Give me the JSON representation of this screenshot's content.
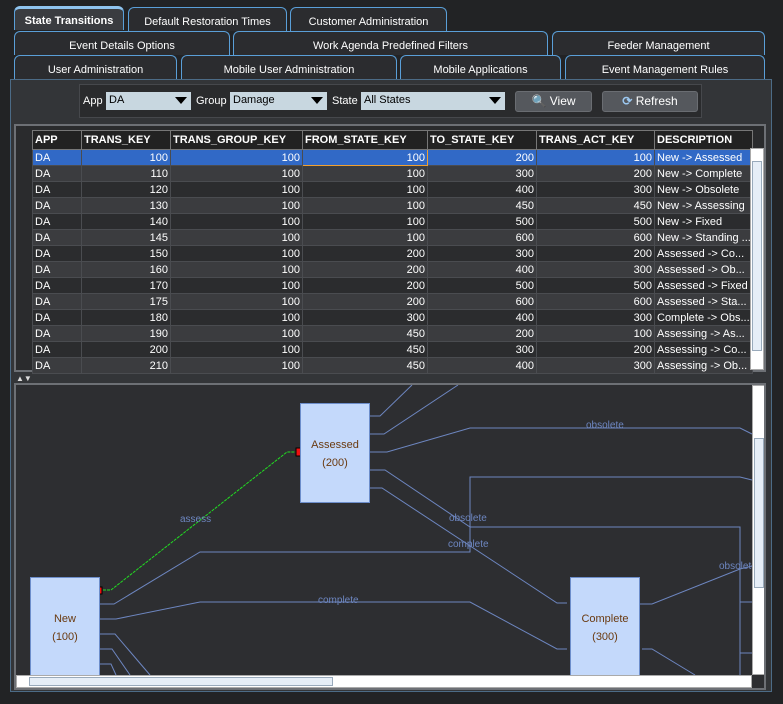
{
  "tabs": {
    "row1": [
      "State Transitions",
      "Default Restoration Times",
      "Customer Administration"
    ],
    "row2": [
      "Event Details Options",
      "Work Agenda Predefined Filters",
      "Feeder Management"
    ],
    "row3": [
      "User Administration",
      "Mobile User Administration",
      "Mobile Applications",
      "Event Management Rules"
    ],
    "selected": "State Transitions"
  },
  "filter": {
    "app_label": "App",
    "app_value": "DA",
    "group_label": "Group",
    "group_value": "Damage",
    "state_label": "State",
    "state_value": "All States",
    "view_label": "View",
    "refresh_label": "Refresh"
  },
  "table": {
    "columns": [
      "APP",
      "TRANS_KEY",
      "TRANS_GROUP_KEY",
      "FROM_STATE_KEY",
      "TO_STATE_KEY",
      "TRANS_ACT_KEY",
      "DESCRIPTION"
    ],
    "rows": [
      [
        "DA",
        "100",
        "100",
        "100",
        "200",
        "100",
        "New -> Assessed"
      ],
      [
        "DA",
        "110",
        "100",
        "100",
        "300",
        "200",
        "New -> Complete"
      ],
      [
        "DA",
        "120",
        "100",
        "100",
        "400",
        "300",
        "New -> Obsolete"
      ],
      [
        "DA",
        "130",
        "100",
        "100",
        "450",
        "450",
        "New -> Assessing"
      ],
      [
        "DA",
        "140",
        "100",
        "100",
        "500",
        "500",
        "New -> Fixed"
      ],
      [
        "DA",
        "145",
        "100",
        "100",
        "600",
        "600",
        "New -> Standing ..."
      ],
      [
        "DA",
        "150",
        "100",
        "200",
        "300",
        "200",
        "Assessed -> Co..."
      ],
      [
        "DA",
        "160",
        "100",
        "200",
        "400",
        "300",
        "Assessed -> Ob..."
      ],
      [
        "DA",
        "170",
        "100",
        "200",
        "500",
        "500",
        "Assessed -> Fixed"
      ],
      [
        "DA",
        "175",
        "100",
        "200",
        "600",
        "600",
        "Assessed -> Sta..."
      ],
      [
        "DA",
        "180",
        "100",
        "300",
        "400",
        "300",
        "Complete -> Obs..."
      ],
      [
        "DA",
        "190",
        "100",
        "450",
        "200",
        "100",
        "Assessing -> As..."
      ],
      [
        "DA",
        "200",
        "100",
        "450",
        "300",
        "200",
        "Assessing -> Co..."
      ],
      [
        "DA",
        "210",
        "100",
        "450",
        "400",
        "300",
        "Assessing -> Ob..."
      ]
    ],
    "selected_row": 0
  },
  "diagram": {
    "nodes": [
      {
        "name": "Assessed",
        "key": "(200)"
      },
      {
        "name": "New",
        "key": "(100)"
      },
      {
        "name": "Complete",
        "key": "(300)"
      }
    ],
    "edge_labels": [
      "assess",
      "obsolete",
      "obsolete",
      "complete",
      "complete",
      "obsolete"
    ],
    "colors": {
      "node": "#c4d9fb",
      "edge": "#6d86c0",
      "selected_edge": "#22dd22",
      "handle": "#ee1111"
    }
  }
}
